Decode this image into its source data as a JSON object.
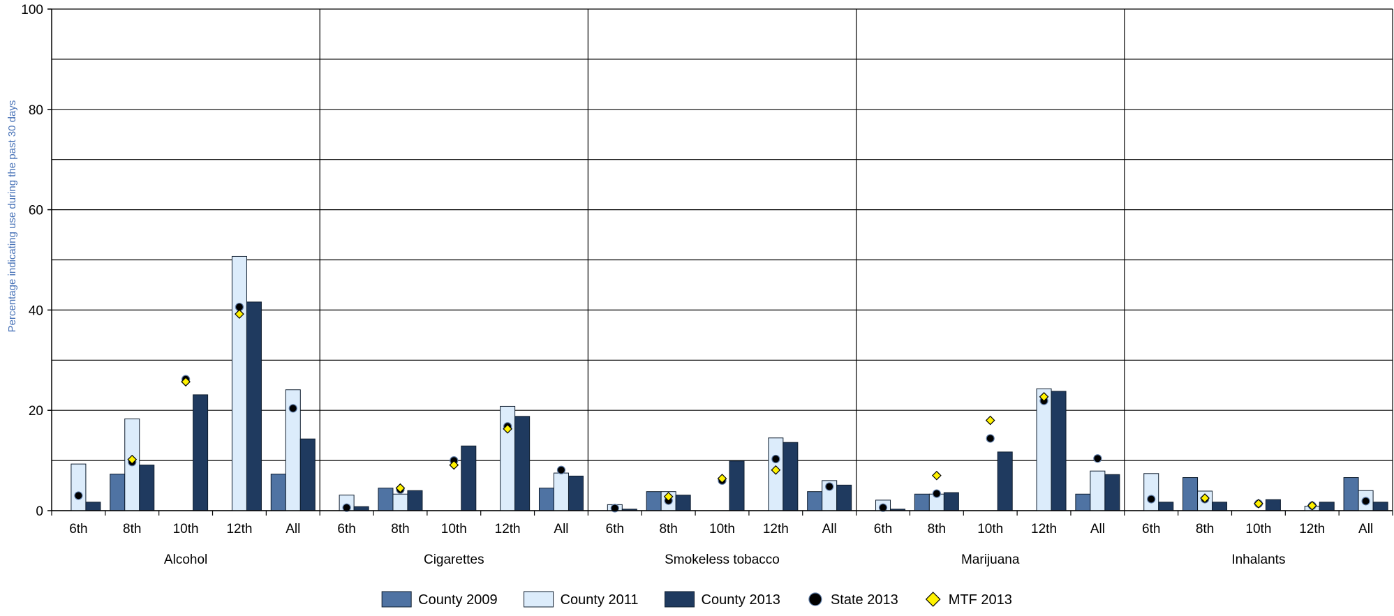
{
  "chart_data": {
    "type": "bar",
    "ylabel": "Percentage indicating use during the past 30 days",
    "ylim": [
      0,
      100
    ],
    "yticks": [
      "0",
      "20",
      "40",
      "60",
      "80",
      "100"
    ],
    "grid": true,
    "legend_position": "bottom",
    "grades": [
      "6th",
      "8th",
      "10th",
      "12th",
      "All"
    ],
    "groups": [
      {
        "name": "Alcohol",
        "county_2009": [
          null,
          7.3,
          null,
          null,
          7.3
        ],
        "county_2011": [
          9.3,
          18.3,
          null,
          50.7,
          24.1
        ],
        "county_2013": [
          1.7,
          9.1,
          23.1,
          41.6,
          14.3
        ],
        "state_2013": [
          3.0,
          9.7,
          26.2,
          40.6,
          20.4
        ],
        "mtf_2013": [
          null,
          10.2,
          25.7,
          39.2,
          null
        ]
      },
      {
        "name": "Cigarettes",
        "county_2009": [
          null,
          4.5,
          null,
          null,
          4.5
        ],
        "county_2011": [
          3.1,
          3.3,
          null,
          20.8,
          7.5
        ],
        "county_2013": [
          0.8,
          4.0,
          12.9,
          18.8,
          6.9
        ],
        "state_2013": [
          0.6,
          4.2,
          10.0,
          16.8,
          8.1
        ],
        "mtf_2013": [
          null,
          4.5,
          9.1,
          16.3,
          null
        ]
      },
      {
        "name": "Smokeless tobacco",
        "county_2009": [
          null,
          3.8,
          null,
          null,
          3.8
        ],
        "county_2011": [
          1.2,
          3.8,
          null,
          14.5,
          6.0
        ],
        "county_2013": [
          0.3,
          3.1,
          9.9,
          13.6,
          5.1
        ],
        "state_2013": [
          0.5,
          2.0,
          6.0,
          10.3,
          4.8
        ],
        "mtf_2013": [
          null,
          2.8,
          6.4,
          8.1,
          null
        ]
      },
      {
        "name": "Marijuana",
        "county_2009": [
          null,
          3.3,
          null,
          null,
          3.3
        ],
        "county_2011": [
          2.1,
          3.3,
          null,
          24.3,
          7.9
        ],
        "county_2013": [
          0.3,
          3.6,
          11.7,
          23.8,
          7.2
        ],
        "state_2013": [
          0.6,
          3.4,
          14.4,
          21.9,
          10.4
        ],
        "mtf_2013": [
          null,
          7.0,
          18.0,
          22.7,
          null
        ]
      },
      {
        "name": "Inhalants",
        "county_2009": [
          null,
          6.6,
          null,
          null,
          6.6
        ],
        "county_2011": [
          7.4,
          3.9,
          null,
          0.9,
          4.0
        ],
        "county_2013": [
          1.7,
          1.7,
          2.2,
          1.7,
          1.7
        ],
        "state_2013": [
          2.3,
          2.3,
          1.4,
          1.0,
          1.9
        ],
        "mtf_2013": [
          null,
          2.5,
          1.4,
          1.0,
          null
        ]
      }
    ],
    "legend": [
      {
        "key": "county_2009",
        "label": "County 2009",
        "color": "#4f73a3",
        "shape": "bar"
      },
      {
        "key": "county_2011",
        "label": "County 2011",
        "color": "#dcecfb",
        "shape": "bar"
      },
      {
        "key": "county_2013",
        "label": "County 2013",
        "color": "#1f3a5f",
        "shape": "bar"
      },
      {
        "key": "state_2013",
        "label": "State 2013",
        "color": "#000000",
        "shape": "circle"
      },
      {
        "key": "mtf_2013",
        "label": "MTF 2013",
        "color": "#fff200",
        "shape": "diamond"
      }
    ]
  }
}
